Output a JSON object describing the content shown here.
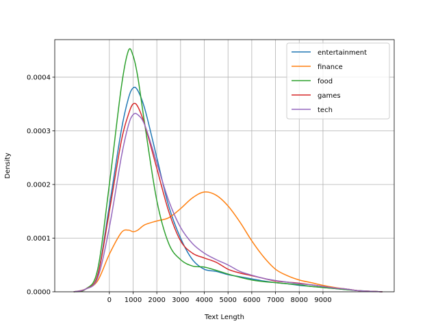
{
  "chart_data": {
    "type": "line",
    "title": "",
    "xlabel": "Text Length",
    "ylabel": "Density",
    "xlim": [
      -2300,
      12000
    ],
    "ylim": [
      0,
      0.00047
    ],
    "x_ticks": [
      0,
      1000,
      2000,
      3000,
      4000,
      5000,
      6000,
      7000,
      8000,
      9000
    ],
    "x_tick_labels": [
      "0",
      "1000",
      "2000",
      "3000",
      "4000",
      "5000",
      "6000",
      "7000",
      "8000",
      "9000"
    ],
    "y_ticks": [
      0,
      0.0001,
      0.0002,
      0.0003,
      0.0004
    ],
    "y_tick_labels": [
      "0.0000",
      "0.0001",
      "0.0002",
      "0.0003",
      "0.0004"
    ],
    "grid": true,
    "legend_position": "top-right",
    "x": [
      -1500,
      -1000,
      -500,
      0,
      500,
      800,
      1000,
      1200,
      1500,
      2000,
      2500,
      3000,
      3500,
      4000,
      4500,
      5000,
      5500,
      6000,
      6500,
      7000,
      7500,
      8000,
      8500,
      9000,
      9500,
      10000,
      10500,
      11000,
      11500
    ],
    "series": [
      {
        "name": "entertainment",
        "color": "#1f77b4",
        "values": [
          0,
          5e-06,
          3e-05,
          0.00016,
          0.0003,
          0.00036,
          0.00038,
          0.000375,
          0.00034,
          0.00025,
          0.00016,
          0.0001,
          6e-05,
          4.2e-05,
          3.8e-05,
          3.2e-05,
          2.8e-05,
          2.4e-05,
          2e-05,
          1.7e-05,
          1.5e-05,
          1.2e-05,
          1e-05,
          8e-06,
          6e-06,
          4e-06,
          2e-06,
          1e-06,
          0
        ]
      },
      {
        "name": "finance",
        "color": "#ff7f0e",
        "values": [
          0,
          5e-06,
          2e-05,
          7e-05,
          0.00011,
          0.000115,
          0.000112,
          0.000115,
          0.000125,
          0.000132,
          0.000138,
          0.000155,
          0.000175,
          0.000186,
          0.00018,
          0.00016,
          0.00013,
          9.5e-05,
          6.5e-05,
          4.2e-05,
          3e-05,
          2.2e-05,
          1.7e-05,
          1.2e-05,
          8e-06,
          5e-06,
          2e-06,
          1e-06,
          0
        ]
      },
      {
        "name": "food",
        "color": "#2ca02c",
        "values": [
          0,
          5e-06,
          4e-05,
          0.0002,
          0.00038,
          0.000449,
          0.00044,
          0.0004,
          0.00031,
          0.00017,
          9e-05,
          6e-05,
          4.8e-05,
          4.6e-05,
          4e-05,
          3.3e-05,
          2.7e-05,
          2.2e-05,
          1.9e-05,
          1.7e-05,
          1.5e-05,
          1.3e-05,
          1e-05,
          8e-06,
          6e-06,
          4e-06,
          2e-06,
          1e-06,
          0
        ]
      },
      {
        "name": "games",
        "color": "#d62728",
        "values": [
          0,
          5e-06,
          3e-05,
          0.00015,
          0.00028,
          0.00033,
          0.00035,
          0.000345,
          0.00031,
          0.00023,
          0.00015,
          9.5e-05,
          7.2e-05,
          6.3e-05,
          5.5e-05,
          4.2e-05,
          3.5e-05,
          3e-05,
          2.5e-05,
          2e-05,
          1.8e-05,
          1.6e-05,
          1.3e-05,
          1e-05,
          7e-06,
          5e-06,
          2e-06,
          1e-06,
          0
        ]
      },
      {
        "name": "tech",
        "color": "#9467bd",
        "values": [
          0,
          5e-06,
          2.5e-05,
          0.00012,
          0.00025,
          0.00031,
          0.00033,
          0.00033,
          0.00031,
          0.00024,
          0.00017,
          0.00012,
          9e-05,
          7.2e-05,
          6e-05,
          5e-05,
          3.8e-05,
          3.1e-05,
          2.5e-05,
          2.1e-05,
          1.8e-05,
          1.5e-05,
          1.3e-05,
          1e-05,
          7e-06,
          5e-06,
          2e-06,
          1e-06,
          0
        ]
      }
    ]
  }
}
